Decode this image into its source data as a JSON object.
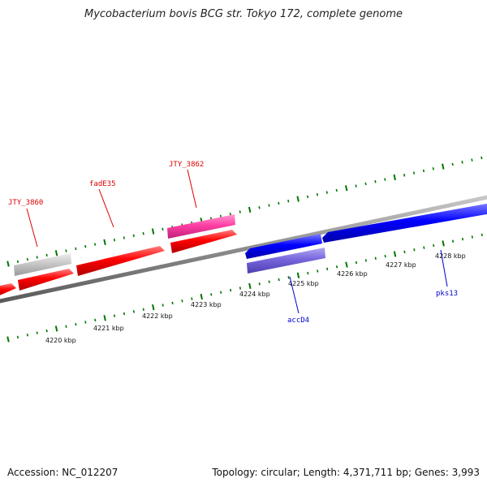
{
  "title": "Mycobacterium bovis BCG str. Tokyo 172, complete genome",
  "footer": {
    "accession": "Accession: NC_012207",
    "summary": "Topology: circular; Length: 4,371,711 bp; Genes: 3,993"
  },
  "colors": {
    "forward_gene": "#ff0000",
    "forward_gene_alt": "#ff3fa4",
    "reverse_gene": "#0000ff",
    "reverse_gene_alt": "#7766dd",
    "pseudo_gene": "#c8c8c8",
    "backbone": "#8c8c8c",
    "tick": "#007700"
  },
  "scale_labels": [
    "4220 kbp",
    "4221 kbp",
    "4222 kbp",
    "4223 kbp",
    "4224 kbp",
    "4225 kbp",
    "4226 kbp",
    "4227 kbp",
    "4228 kbp"
  ],
  "gene_labels": [
    {
      "text": "JTY_3860",
      "strand": "forward"
    },
    {
      "text": "fadE35",
      "strand": "forward"
    },
    {
      "text": "JTY_3862",
      "strand": "forward"
    },
    {
      "text": "accD4",
      "strand": "reverse"
    },
    {
      "text": "pks13",
      "strand": "reverse"
    }
  ]
}
